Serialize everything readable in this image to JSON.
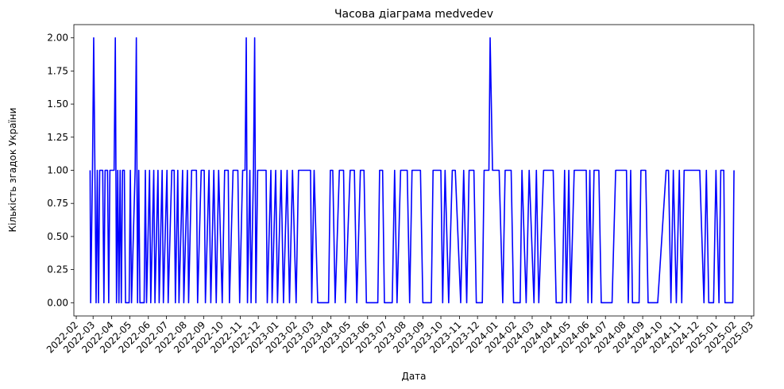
{
  "chart_data": {
    "type": "line",
    "title": "Часова діаграма medvedev",
    "xlabel": "Дата",
    "ylabel": "Кількість згадок України",
    "color": "#0000ff",
    "x": [
      "2022-02-24",
      "2022-02-25",
      "2022-02-28",
      "2022-03-02",
      "2022-03-04",
      "2022-03-06",
      "2022-03-08",
      "2022-03-10",
      "2022-03-12",
      "2022-03-17",
      "2022-03-19",
      "2022-03-21",
      "2022-03-25",
      "2022-03-27",
      "2022-03-29",
      "2022-04-05",
      "2022-04-07",
      "2022-04-09",
      "2022-04-11",
      "2022-04-13",
      "2022-04-15",
      "2022-04-17",
      "2022-04-19",
      "2022-04-22",
      "2022-04-24",
      "2022-04-30",
      "2022-05-02",
      "2022-05-04",
      "2022-05-10",
      "2022-05-12",
      "2022-05-14",
      "2022-05-16",
      "2022-05-18",
      "2022-05-25",
      "2022-05-27",
      "2022-05-29",
      "2022-06-03",
      "2022-06-05",
      "2022-06-10",
      "2022-06-12",
      "2022-06-17",
      "2022-06-19",
      "2022-06-24",
      "2022-06-26",
      "2022-07-02",
      "2022-07-04",
      "2022-07-10",
      "2022-07-14",
      "2022-07-16",
      "2022-07-20",
      "2022-07-22",
      "2022-07-28",
      "2022-07-30",
      "2022-08-05",
      "2022-08-07",
      "2022-08-12",
      "2022-08-20",
      "2022-08-22",
      "2022-08-28",
      "2022-09-02",
      "2022-09-04",
      "2022-09-10",
      "2022-09-13",
      "2022-09-18",
      "2022-09-22",
      "2022-09-26",
      "2022-10-02",
      "2022-10-06",
      "2022-10-12",
      "2022-10-14",
      "2022-10-20",
      "2022-10-28",
      "2022-10-31",
      "2022-11-05",
      "2022-11-09",
      "2022-11-11",
      "2022-11-13",
      "2022-11-17",
      "2022-11-19",
      "2022-11-23",
      "2022-11-25",
      "2022-11-27",
      "2022-11-30",
      "2022-12-14",
      "2022-12-16",
      "2022-12-22",
      "2022-12-24",
      "2022-12-30",
      "2023-01-02",
      "2023-01-08",
      "2023-01-12",
      "2023-01-18",
      "2023-01-22",
      "2023-01-27",
      "2023-02-02",
      "2023-02-06",
      "2023-02-26",
      "2023-02-28",
      "2023-03-04",
      "2023-03-10",
      "2023-03-28",
      "2023-03-31",
      "2023-04-04",
      "2023-04-08",
      "2023-04-15",
      "2023-04-22",
      "2023-04-25",
      "2023-05-03",
      "2023-05-10",
      "2023-05-14",
      "2023-05-20",
      "2023-05-26",
      "2023-05-30",
      "2023-06-18",
      "2023-06-21",
      "2023-06-26",
      "2023-06-29",
      "2023-07-12",
      "2023-07-16",
      "2023-07-20",
      "2023-07-26",
      "2023-08-06",
      "2023-08-10",
      "2023-08-14",
      "2023-08-28",
      "2023-09-01",
      "2023-09-15",
      "2023-09-18",
      "2023-10-01",
      "2023-10-04",
      "2023-10-08",
      "2023-10-14",
      "2023-10-20",
      "2023-10-25",
      "2023-11-03",
      "2023-11-08",
      "2023-11-13",
      "2023-11-17",
      "2023-11-25",
      "2023-11-29",
      "2023-12-09",
      "2023-12-12",
      "2023-12-20",
      "2023-12-22",
      "2023-12-26",
      "2024-01-06",
      "2024-01-12",
      "2024-01-16",
      "2024-01-26",
      "2024-01-30",
      "2024-02-10",
      "2024-02-13",
      "2024-02-20",
      "2024-02-25",
      "2024-03-04",
      "2024-03-08",
      "2024-03-12",
      "2024-03-20",
      "2024-04-05",
      "2024-04-10",
      "2024-04-20",
      "2024-04-24",
      "2024-04-27",
      "2024-05-01",
      "2024-05-04",
      "2024-05-10",
      "2024-05-30",
      "2024-06-02",
      "2024-06-05",
      "2024-06-08",
      "2024-06-12",
      "2024-06-20",
      "2024-06-24",
      "2024-07-12",
      "2024-07-18",
      "2024-08-05",
      "2024-08-08",
      "2024-08-12",
      "2024-08-15",
      "2024-08-26",
      "2024-08-29",
      "2024-09-06",
      "2024-09-10",
      "2024-09-26",
      "2024-10-10",
      "2024-10-14",
      "2024-10-18",
      "2024-10-22",
      "2024-10-27",
      "2024-11-01",
      "2024-11-05",
      "2024-11-09",
      "2024-12-05",
      "2024-12-12",
      "2024-12-16",
      "2024-12-20",
      "2024-12-28",
      "2025-01-01",
      "2025-01-06",
      "2025-01-09",
      "2025-01-14",
      "2025-01-16",
      "2025-01-29",
      "2025-01-31"
    ],
    "values": [
      1,
      0,
      1,
      2,
      1,
      0,
      1,
      0,
      1,
      1,
      0,
      1,
      1,
      0,
      1,
      1,
      2,
      0,
      1,
      0,
      1,
      0,
      1,
      1,
      0,
      0,
      1,
      0,
      1,
      2,
      0,
      1,
      0,
      0,
      1,
      0,
      1,
      0,
      1,
      0,
      1,
      0,
      1,
      0,
      1,
      0,
      1,
      1,
      0,
      1,
      0,
      1,
      0,
      1,
      0,
      1,
      1,
      0,
      1,
      1,
      0,
      1,
      0,
      1,
      0,
      1,
      0,
      1,
      1,
      0,
      1,
      1,
      0,
      1,
      1,
      2,
      0,
      1,
      0,
      1,
      2,
      0,
      1,
      1,
      0,
      1,
      0,
      1,
      0,
      1,
      0,
      1,
      0,
      1,
      0,
      1,
      1,
      0,
      1,
      0,
      0,
      1,
      1,
      0,
      1,
      1,
      0,
      1,
      1,
      0,
      1,
      1,
      0,
      0,
      1,
      1,
      0,
      0,
      1,
      0,
      1,
      1,
      0,
      1,
      1,
      0,
      0,
      1,
      1,
      0,
      1,
      0,
      1,
      1,
      0,
      1,
      0,
      1,
      1,
      0,
      0,
      1,
      1,
      2,
      1,
      1,
      0,
      1,
      1,
      0,
      0,
      1,
      0,
      1,
      0,
      1,
      0,
      1,
      1,
      0,
      0,
      1,
      0,
      1,
      0,
      1,
      1,
      0,
      1,
      0,
      1,
      1,
      0,
      0,
      1,
      1,
      0,
      1,
      0,
      0,
      1,
      1,
      0,
      0,
      1,
      1,
      0,
      1,
      0,
      1,
      0,
      1,
      1,
      0,
      1,
      0,
      0,
      1,
      0,
      1,
      1,
      0,
      0,
      1
    ],
    "xlim": [
      "2022-01-28",
      "2025-03-05"
    ],
    "xticks": [
      "2022-02",
      "2022-03",
      "2022-04",
      "2022-05",
      "2022-06",
      "2022-07",
      "2022-08",
      "2022-09",
      "2022-10",
      "2022-11",
      "2022-12",
      "2023-01",
      "2023-02",
      "2023-03",
      "2023-04",
      "2023-05",
      "2023-06",
      "2023-07",
      "2023-08",
      "2023-09",
      "2023-10",
      "2023-11",
      "2023-12",
      "2024-01",
      "2024-02",
      "2024-03",
      "2024-04",
      "2024-05",
      "2024-06",
      "2024-07",
      "2024-08",
      "2024-09",
      "2024-10",
      "2024-11",
      "2024-12",
      "2025-01",
      "2025-02",
      "2025-03"
    ],
    "ylim": [
      -0.1,
      2.1
    ],
    "yticks": [
      {
        "value": 0,
        "label": "0.00"
      },
      {
        "value": 0.25,
        "label": "0.25"
      },
      {
        "value": 0.5,
        "label": "0.50"
      },
      {
        "value": 0.75,
        "label": "0.75"
      },
      {
        "value": 1,
        "label": "1.00"
      },
      {
        "value": 1.25,
        "label": "1.25"
      },
      {
        "value": 1.5,
        "label": "1.50"
      },
      {
        "value": 1.75,
        "label": "1.75"
      },
      {
        "value": 2,
        "label": "2.00"
      }
    ],
    "grid": false
  }
}
